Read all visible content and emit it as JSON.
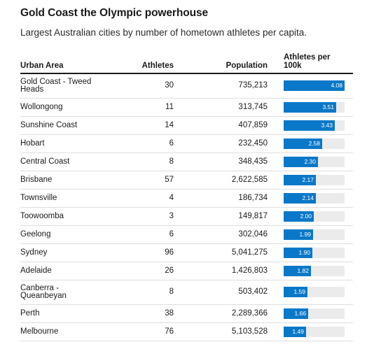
{
  "title": "Gold Coast the Olympic powerhouse",
  "subtitle": "Largest Australian cities by number of hometown athletes per capita.",
  "columns": {
    "urban_area": "Urban Area",
    "athletes": "Athletes",
    "population": "Population",
    "per_capita_line1": "Athletes per",
    "per_capita_line2": "100k"
  },
  "colors": {
    "bar": "#0a78c8",
    "track": "#ebebeb",
    "bar_text": "#ffffff"
  },
  "chart_data": {
    "type": "table",
    "max_value": 4.08,
    "rows": [
      {
        "city": "Gold Coast - Tweed Heads",
        "city_lines": [
          "Gold Coast - Tweed",
          "Heads"
        ],
        "athletes": "30",
        "population": "735,213",
        "per_capita": 4.08,
        "per_capita_label": "4.08"
      },
      {
        "city": "Wollongong",
        "city_lines": [
          "Wollongong"
        ],
        "athletes": "11",
        "population": "313,745",
        "per_capita": 3.51,
        "per_capita_label": "3.51"
      },
      {
        "city": "Sunshine Coast",
        "city_lines": [
          "Sunshine Coast"
        ],
        "athletes": "14",
        "population": "407,859",
        "per_capita": 3.43,
        "per_capita_label": "3.43"
      },
      {
        "city": "Hobart",
        "city_lines": [
          "Hobart"
        ],
        "athletes": "6",
        "population": "232,450",
        "per_capita": 2.58,
        "per_capita_label": "2.58"
      },
      {
        "city": "Central Coast",
        "city_lines": [
          "Central Coast"
        ],
        "athletes": "8",
        "population": "348,435",
        "per_capita": 2.3,
        "per_capita_label": "2.30"
      },
      {
        "city": "Brisbane",
        "city_lines": [
          "Brisbane"
        ],
        "athletes": "57",
        "population": "2,622,585",
        "per_capita": 2.17,
        "per_capita_label": "2.17"
      },
      {
        "city": "Townsville",
        "city_lines": [
          "Townsville"
        ],
        "athletes": "4",
        "population": "186,734",
        "per_capita": 2.14,
        "per_capita_label": "2.14"
      },
      {
        "city": "Toowoomba",
        "city_lines": [
          "Toowoomba"
        ],
        "athletes": "3",
        "population": "149,817",
        "per_capita": 2.0,
        "per_capita_label": "2.00"
      },
      {
        "city": "Geelong",
        "city_lines": [
          "Geelong"
        ],
        "athletes": "6",
        "population": "302,046",
        "per_capita": 1.99,
        "per_capita_label": "1.99"
      },
      {
        "city": "Sydney",
        "city_lines": [
          "Sydney"
        ],
        "athletes": "96",
        "population": "5,041,275",
        "per_capita": 1.9,
        "per_capita_label": "1.90"
      },
      {
        "city": "Adelaide",
        "city_lines": [
          "Adelaide"
        ],
        "athletes": "26",
        "population": "1,426,803",
        "per_capita": 1.82,
        "per_capita_label": "1.82"
      },
      {
        "city": "Canberra - Queanbeyan",
        "city_lines": [
          "Canberra -",
          "Queanbeyan"
        ],
        "athletes": "8",
        "population": "503,402",
        "per_capita": 1.59,
        "per_capita_label": "1.59"
      },
      {
        "city": "Perth",
        "city_lines": [
          "Perth"
        ],
        "athletes": "38",
        "population": "2,289,366",
        "per_capita": 1.66,
        "per_capita_label": "1.66"
      },
      {
        "city": "Melbourne",
        "city_lines": [
          "Melbourne"
        ],
        "athletes": "76",
        "population": "5,103,528",
        "per_capita": 1.49,
        "per_capita_label": "1.49"
      }
    ]
  }
}
